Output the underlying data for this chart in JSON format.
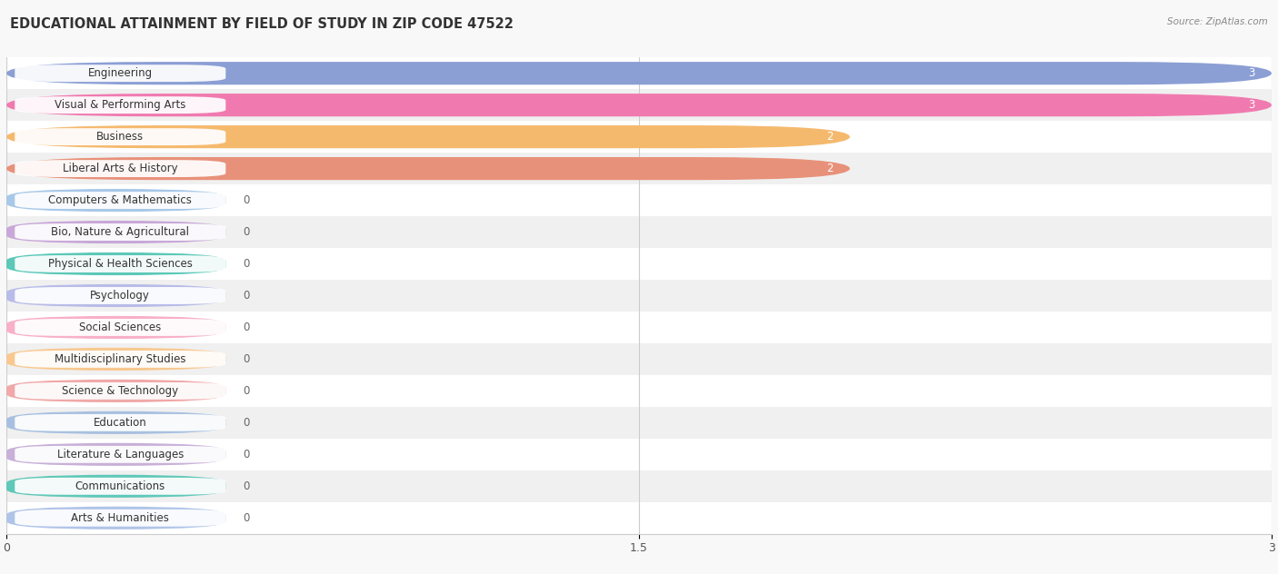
{
  "title": "EDUCATIONAL ATTAINMENT BY FIELD OF STUDY IN ZIP CODE 47522",
  "source": "Source: ZipAtlas.com",
  "categories": [
    "Engineering",
    "Visual & Performing Arts",
    "Business",
    "Liberal Arts & History",
    "Computers & Mathematics",
    "Bio, Nature & Agricultural",
    "Physical & Health Sciences",
    "Psychology",
    "Social Sciences",
    "Multidisciplinary Studies",
    "Science & Technology",
    "Education",
    "Literature & Languages",
    "Communications",
    "Arts & Humanities"
  ],
  "values": [
    3,
    3,
    2,
    2,
    0,
    0,
    0,
    0,
    0,
    0,
    0,
    0,
    0,
    0,
    0
  ],
  "bar_colors": [
    "#8b9fd4",
    "#f07ab0",
    "#f5b96e",
    "#e8917a",
    "#a8c8e8",
    "#c8a8d8",
    "#5bc8b8",
    "#b8bce8",
    "#f8b0c8",
    "#f8c890",
    "#f0a8a8",
    "#a8c0e0",
    "#c8b0d8",
    "#60c8b8",
    "#b0c4e8"
  ],
  "zero_bar_width": 0.52,
  "xlim": [
    0,
    3
  ],
  "xticks": [
    0,
    1.5,
    3
  ],
  "background_color": "#f8f8f8",
  "row_bg_even": "#ffffff",
  "row_bg_odd": "#f0f0f0",
  "title_fontsize": 10.5,
  "label_fontsize": 8.5,
  "value_fontsize": 8.5,
  "bar_height": 0.72
}
